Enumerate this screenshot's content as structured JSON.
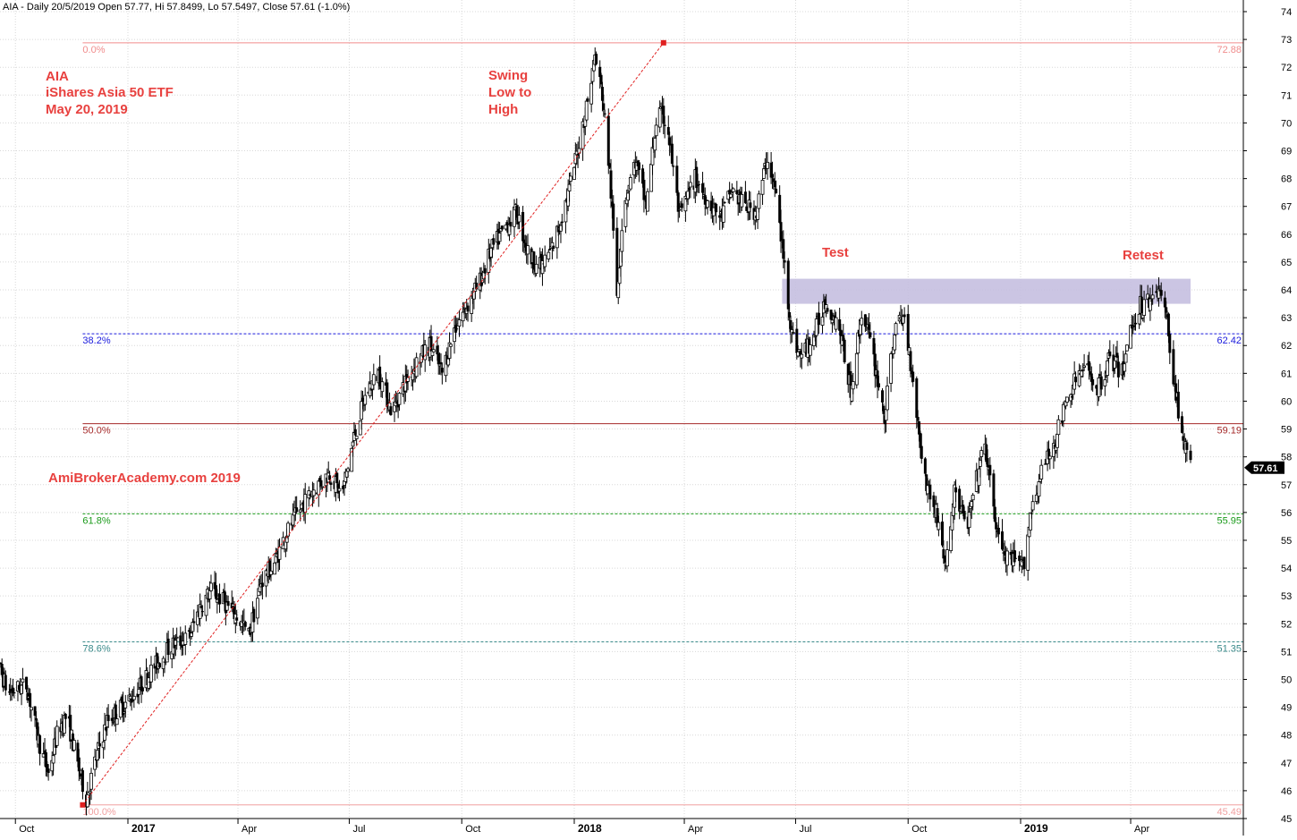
{
  "header": "AIA - Daily 20/5/2019 Open 57.77, Hi 57.8499, Lo 57.5497, Close 57.61 (-1.0%)",
  "annotations": {
    "title_lines": [
      "AIA",
      "iShares Asia 50 ETF",
      "May 20, 2019"
    ],
    "swing_lines": [
      "Swing",
      "Low to",
      "High"
    ],
    "test": "Test",
    "retest": "Retest",
    "watermark": "AmiBrokerAcademy.com  2019"
  },
  "last_price_label": "57.61",
  "colors": {
    "annotation": "#e8413f",
    "candle": "#000000",
    "fib_0": "#f08c8c",
    "fib_382": "#1a1adc",
    "fib_50": "#a52a2a",
    "fib_618": "#1a9a1a",
    "fib_786": "#3a8a8a",
    "fib_100": "#f0a0a0",
    "resistance_box": "#c5bfe0",
    "grid": "#d8d8d8",
    "swing_line": "#e02020"
  },
  "chart_data": {
    "type": "candlestick",
    "title": "AIA - Daily 20/5/2019",
    "ylim": [
      45,
      74
    ],
    "y_ticks": [
      45,
      46,
      47,
      48,
      49,
      50,
      51,
      52,
      53,
      54,
      55,
      56,
      57,
      58,
      59,
      60,
      61,
      62,
      63,
      64,
      65,
      66,
      67,
      68,
      69,
      70,
      71,
      72,
      73,
      74
    ],
    "x_ticks": [
      {
        "date": "2016-10-01",
        "label": "Oct",
        "bold": false
      },
      {
        "date": "2017-01-01",
        "label": "2017",
        "bold": true
      },
      {
        "date": "2017-04-01",
        "label": "Apr",
        "bold": false
      },
      {
        "date": "2017-07-01",
        "label": "Jul",
        "bold": false
      },
      {
        "date": "2017-10-01",
        "label": "Oct",
        "bold": false
      },
      {
        "date": "2018-01-01",
        "label": "2018",
        "bold": true
      },
      {
        "date": "2018-04-01",
        "label": "Apr",
        "bold": false
      },
      {
        "date": "2018-07-01",
        "label": "Jul",
        "bold": false
      },
      {
        "date": "2018-10-01",
        "label": "Oct",
        "bold": false
      },
      {
        "date": "2019-01-01",
        "label": "2019",
        "bold": true
      },
      {
        "date": "2019-04-01",
        "label": "Apr",
        "bold": false
      }
    ],
    "last_ohlc": {
      "date": "2019-05-20",
      "open": 57.77,
      "high": 57.8499,
      "low": 57.5497,
      "close": 57.61,
      "change_pct": -1.0
    },
    "fib_levels": [
      {
        "pct": "0.0%",
        "value": 72.88,
        "value_label": "72.88",
        "style": "solid",
        "color_key": "fib_0"
      },
      {
        "pct": "38.2%",
        "value": 62.42,
        "value_label": "62.42",
        "style": "dashed",
        "color_key": "fib_382"
      },
      {
        "pct": "50.0%",
        "value": 59.19,
        "value_label": "59.19",
        "style": "solid",
        "color_key": "fib_50"
      },
      {
        "pct": "61.8%",
        "value": 55.95,
        "value_label": "55.95",
        "style": "dashed",
        "color_key": "fib_618"
      },
      {
        "pct": "78.6%",
        "value": 51.35,
        "value_label": "51.35",
        "style": "dashed",
        "color_key": "fib_786"
      },
      {
        "pct": "100.0%",
        "value": 45.49,
        "value_label": "45.49",
        "style": "solid",
        "color_key": "fib_100"
      }
    ],
    "swing": {
      "low": {
        "date": "2016-11-25",
        "price": 45.49
      },
      "high": {
        "date": "2018-03-15",
        "price": 72.88
      }
    },
    "resistance_zone": {
      "from": "2018-06-20",
      "to": "2019-05-20",
      "low": 63.5,
      "high": 64.4
    },
    "price_path": [
      {
        "date": "2016-09-05",
        "price": 49.8
      },
      {
        "date": "2016-09-15",
        "price": 50.8
      },
      {
        "date": "2016-09-25",
        "price": 49.5
      },
      {
        "date": "2016-10-10",
        "price": 49.8
      },
      {
        "date": "2016-10-20",
        "price": 47.8
      },
      {
        "date": "2016-10-28",
        "price": 46.6
      },
      {
        "date": "2016-11-05",
        "price": 48.2
      },
      {
        "date": "2016-11-12",
        "price": 48.7
      },
      {
        "date": "2016-11-20",
        "price": 47.1
      },
      {
        "date": "2016-11-28",
        "price": 45.7
      },
      {
        "date": "2016-12-05",
        "price": 47.0
      },
      {
        "date": "2016-12-15",
        "price": 48.5
      },
      {
        "date": "2017-01-05",
        "price": 49.4
      },
      {
        "date": "2017-01-20",
        "price": 50.3
      },
      {
        "date": "2017-02-05",
        "price": 51.2
      },
      {
        "date": "2017-02-20",
        "price": 51.5
      },
      {
        "date": "2017-03-01",
        "price": 52.6
      },
      {
        "date": "2017-03-10",
        "price": 53.2
      },
      {
        "date": "2017-03-20",
        "price": 52.8
      },
      {
        "date": "2017-04-01",
        "price": 52.2
      },
      {
        "date": "2017-04-10",
        "price": 51.6
      },
      {
        "date": "2017-04-20",
        "price": 53.5
      },
      {
        "date": "2017-05-01",
        "price": 54.2
      },
      {
        "date": "2017-05-10",
        "price": 55.2
      },
      {
        "date": "2017-05-20",
        "price": 56.0
      },
      {
        "date": "2017-06-01",
        "price": 56.8
      },
      {
        "date": "2017-06-15",
        "price": 57.4
      },
      {
        "date": "2017-06-25",
        "price": 56.6
      },
      {
        "date": "2017-07-05",
        "price": 58.7
      },
      {
        "date": "2017-07-15",
        "price": 60.3
      },
      {
        "date": "2017-07-25",
        "price": 61.0
      },
      {
        "date": "2017-08-05",
        "price": 59.6
      },
      {
        "date": "2017-08-15",
        "price": 60.6
      },
      {
        "date": "2017-08-25",
        "price": 61.4
      },
      {
        "date": "2017-09-05",
        "price": 62.0
      },
      {
        "date": "2017-09-15",
        "price": 61.0
      },
      {
        "date": "2017-09-25",
        "price": 62.6
      },
      {
        "date": "2017-10-05",
        "price": 63.4
      },
      {
        "date": "2017-10-15",
        "price": 64.2
      },
      {
        "date": "2017-10-25",
        "price": 65.4
      },
      {
        "date": "2017-11-05",
        "price": 66.2
      },
      {
        "date": "2017-11-15",
        "price": 66.8
      },
      {
        "date": "2017-11-25",
        "price": 65.2
      },
      {
        "date": "2017-12-05",
        "price": 64.8
      },
      {
        "date": "2017-12-15",
        "price": 65.6
      },
      {
        "date": "2017-12-28",
        "price": 67.6
      },
      {
        "date": "2018-01-05",
        "price": 69.3
      },
      {
        "date": "2018-01-12",
        "price": 70.8
      },
      {
        "date": "2018-01-18",
        "price": 72.4
      },
      {
        "date": "2018-01-24",
        "price": 71.0
      },
      {
        "date": "2018-01-30",
        "price": 68.2
      },
      {
        "date": "2018-02-05",
        "price": 63.8
      },
      {
        "date": "2018-02-10",
        "price": 67.0
      },
      {
        "date": "2018-02-20",
        "price": 68.6
      },
      {
        "date": "2018-03-01",
        "price": 67.0
      },
      {
        "date": "2018-03-10",
        "price": 70.4
      },
      {
        "date": "2018-03-18",
        "price": 70.0
      },
      {
        "date": "2018-03-28",
        "price": 66.6
      },
      {
        "date": "2018-04-10",
        "price": 68.0
      },
      {
        "date": "2018-04-20",
        "price": 67.2
      },
      {
        "date": "2018-05-01",
        "price": 66.6
      },
      {
        "date": "2018-05-10",
        "price": 67.6
      },
      {
        "date": "2018-05-20",
        "price": 67.0
      },
      {
        "date": "2018-05-30",
        "price": 66.8
      },
      {
        "date": "2018-06-08",
        "price": 68.8
      },
      {
        "date": "2018-06-15",
        "price": 67.4
      },
      {
        "date": "2018-06-22",
        "price": 64.8
      },
      {
        "date": "2018-06-28",
        "price": 62.4
      },
      {
        "date": "2018-07-05",
        "price": 61.6
      },
      {
        "date": "2018-07-15",
        "price": 62.2
      },
      {
        "date": "2018-07-25",
        "price": 63.6
      },
      {
        "date": "2018-08-05",
        "price": 62.8
      },
      {
        "date": "2018-08-15",
        "price": 60.4
      },
      {
        "date": "2018-08-25",
        "price": 63.4
      },
      {
        "date": "2018-09-05",
        "price": 61.0
      },
      {
        "date": "2018-09-12",
        "price": 59.4
      },
      {
        "date": "2018-09-20",
        "price": 62.6
      },
      {
        "date": "2018-09-28",
        "price": 63.0
      },
      {
        "date": "2018-10-05",
        "price": 60.8
      },
      {
        "date": "2018-10-10",
        "price": 58.8
      },
      {
        "date": "2018-10-15",
        "price": 57.2
      },
      {
        "date": "2018-10-25",
        "price": 55.8
      },
      {
        "date": "2018-11-01",
        "price": 54.0
      },
      {
        "date": "2018-11-08",
        "price": 56.8
      },
      {
        "date": "2018-11-18",
        "price": 55.4
      },
      {
        "date": "2018-11-28",
        "price": 57.6
      },
      {
        "date": "2018-12-03",
        "price": 58.4
      },
      {
        "date": "2018-12-10",
        "price": 56.0
      },
      {
        "date": "2018-12-18",
        "price": 54.4
      },
      {
        "date": "2018-12-26",
        "price": 54.2
      },
      {
        "date": "2019-01-03",
        "price": 54.0
      },
      {
        "date": "2019-01-10",
        "price": 56.2
      },
      {
        "date": "2019-01-18",
        "price": 57.4
      },
      {
        "date": "2019-01-28",
        "price": 58.4
      },
      {
        "date": "2019-02-05",
        "price": 59.6
      },
      {
        "date": "2019-02-15",
        "price": 60.8
      },
      {
        "date": "2019-02-25",
        "price": 61.2
      },
      {
        "date": "2019-03-05",
        "price": 60.4
      },
      {
        "date": "2019-03-15",
        "price": 61.6
      },
      {
        "date": "2019-03-25",
        "price": 61.0
      },
      {
        "date": "2019-04-01",
        "price": 62.6
      },
      {
        "date": "2019-04-08",
        "price": 63.4
      },
      {
        "date": "2019-04-15",
        "price": 63.6
      },
      {
        "date": "2019-04-22",
        "price": 64.1
      },
      {
        "date": "2019-04-29",
        "price": 63.4
      },
      {
        "date": "2019-05-03",
        "price": 62.0
      },
      {
        "date": "2019-05-08",
        "price": 60.2
      },
      {
        "date": "2019-05-13",
        "price": 59.0
      },
      {
        "date": "2019-05-16",
        "price": 58.2
      },
      {
        "date": "2019-05-20",
        "price": 57.61
      }
    ]
  }
}
